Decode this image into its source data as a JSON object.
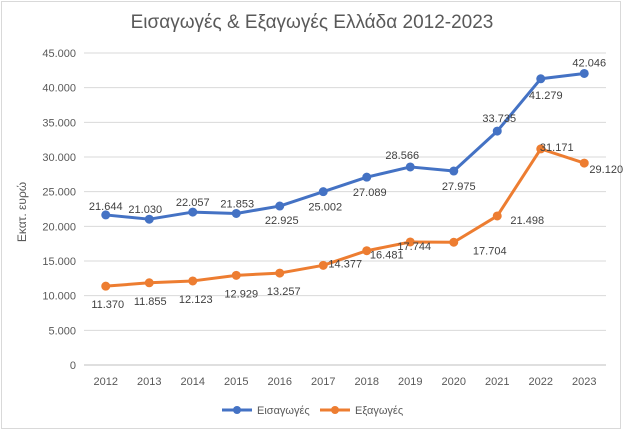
{
  "chart_data": {
    "type": "line",
    "title": "Εισαγωγές & Εξαγωγές Ελλάδα 2012-2023",
    "xlabel": "",
    "ylabel": "Εκατ. ευρώ",
    "x": [
      "2012",
      "2013",
      "2014",
      "2015",
      "2016",
      "2017",
      "2018",
      "2019",
      "2020",
      "2021",
      "2022",
      "2023"
    ],
    "ylim": [
      0,
      45000
    ],
    "yticks": [
      0,
      5000,
      10000,
      15000,
      20000,
      25000,
      30000,
      35000,
      40000,
      45000
    ],
    "ytick_labels": [
      "0",
      "5.000",
      "10.000",
      "15.000",
      "20.000",
      "25.000",
      "30.000",
      "35.000",
      "40.000",
      "45.000"
    ],
    "grid": true,
    "legend": "bottom",
    "series": [
      {
        "name": "Εισαγωγές",
        "color": "#4472c4",
        "values": [
          21644,
          21030,
          22057,
          21853,
          22925,
          25002,
          27089,
          28566,
          27975,
          33735,
          41279,
          42046
        ],
        "labels": [
          "21.644",
          "21.030",
          "22.057",
          "21.853",
          "22.925",
          "25.002",
          "27.089",
          "28.566",
          "27.975",
          "33.735",
          "41.279",
          "42.046"
        ]
      },
      {
        "name": "Εξαγωγές",
        "color": "#ed7d31",
        "values": [
          11370,
          11855,
          12123,
          12929,
          13257,
          14377,
          16481,
          17744,
          17704,
          21498,
          31171,
          29120
        ],
        "labels": [
          "11.370",
          "11.855",
          "12.123",
          "12.929",
          "13.257",
          "14.377",
          "16.481",
          "17.744",
          "17.704",
          "21.498",
          "31.171",
          "29.120"
        ]
      }
    ]
  }
}
